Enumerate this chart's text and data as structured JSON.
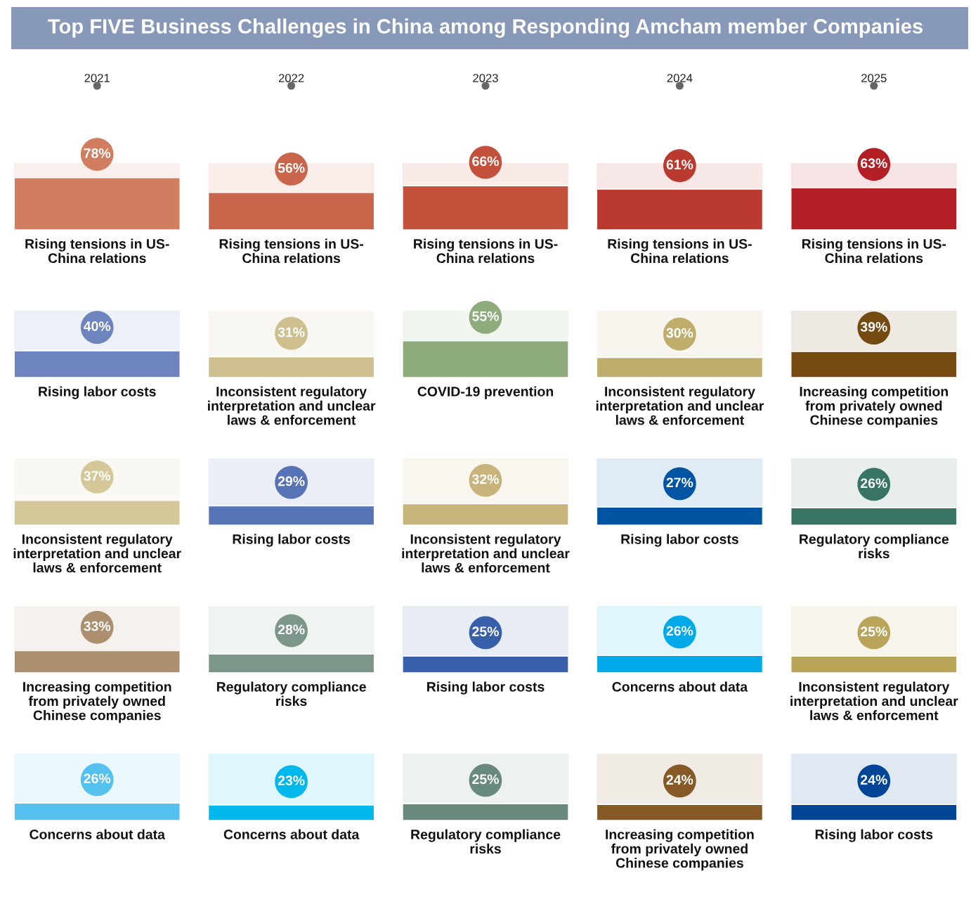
{
  "chart_data": [
    {
      "type": "other",
      "title": "Top FIVE Business Challenges in China among Responding Amcham member Companies"
    },
    {
      "type": "bar",
      "categories": [
        "Rising tensions in US-\nChina relations",
        "Rising tensions in US-\nChina relations",
        "Rising tensions in US-\nChina relations",
        "Rising tensions in US-\nChina relations",
        "Rising tensions in US-\nChina relations"
      ],
      "values": [
        78,
        56,
        66,
        61,
        63
      ],
      "value_labels": [
        "78%",
        "56%",
        "66%",
        "61%",
        "63%"
      ],
      "colors": [
        "#d17d5f",
        "#c9654a",
        "#c2503b",
        "#bb3a2f",
        "#b41e25"
      ],
      "ylim": [
        0,
        100
      ],
      "x2lim": [
        2021,
        2025
      ],
      "x2ticks": [
        2021,
        2022,
        2023,
        2024,
        2025
      ]
    },
    {
      "type": "bar",
      "categories": [
        "Rising labor costs",
        "Inconsistent regulatory\ninterpretation and unclear\nlaws & enforcement",
        "COVID-19 prevention",
        "Inconsistent regulatory\ninterpretation and unclear\nlaws & enforcement",
        "Increasing competition\nfrom privately owned\nChinese companies"
      ],
      "values": [
        40,
        31,
        55,
        30,
        39
      ],
      "value_labels": [
        "40%",
        "31%",
        "55%",
        "30%",
        "39%"
      ],
      "colors": [
        "#6e84be",
        "#cdc08e",
        "#8dab7b",
        "#bfad6c",
        "#754a10"
      ],
      "ylim": [
        0,
        100
      ]
    },
    {
      "type": "bar",
      "categories": [
        "Inconsistent regulatory\ninterpretation and unclear\nlaws & enforcement",
        "Rising labor costs",
        "Inconsistent regulatory\ninterpretation and unclear\nlaws & enforcement",
        "Rising labor costs",
        "Regulatory compliance\nrisks"
      ],
      "values": [
        37,
        29,
        32,
        27,
        26
      ],
      "value_labels": [
        "37%",
        "29%",
        "32%",
        "27%",
        "26%"
      ],
      "colors": [
        "#d4c898",
        "#5673b6",
        "#c8b47a",
        "#0055a2",
        "#387463"
      ],
      "ylim": [
        0,
        100
      ]
    },
    {
      "type": "bar",
      "categories": [
        "Increasing competition\nfrom privately owned\nChinese companies",
        "Regulatory compliance\nrisks",
        "Rising labor costs",
        "Concerns about data",
        "Inconsistent regulatory\ninterpretation and unclear\nlaws & enforcement"
      ],
      "values": [
        33,
        28,
        25,
        26,
        25
      ],
      "value_labels": [
        "33%",
        "28%",
        "25%",
        "26%",
        "25%"
      ],
      "colors": [
        "#ab8f6e",
        "#7c978a",
        "#3860aa",
        "#00a9e8",
        "#b9a459"
      ],
      "ylim": [
        0,
        100
      ]
    },
    {
      "type": "bar",
      "categories": [
        "Concerns about data",
        "Concerns about data",
        "Regulatory compliance\nrisks",
        "Increasing competition\nfrom privately owned\nChinese companies",
        "Rising labor costs"
      ],
      "values": [
        26,
        23,
        25,
        24,
        24
      ],
      "value_labels": [
        "26%",
        "23%",
        "25%",
        "24%",
        "24%"
      ],
      "colors": [
        "#55c1ee",
        "#00b8ec",
        "#688a7c",
        "#865a27",
        "#004596"
      ],
      "ylim": [
        0,
        100
      ]
    }
  ]
}
